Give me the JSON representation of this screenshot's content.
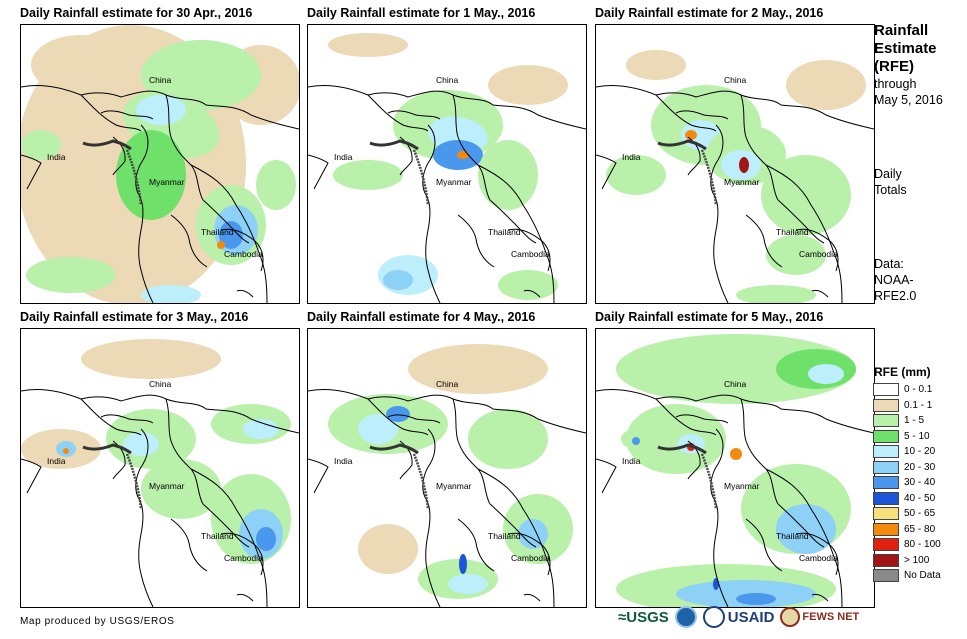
{
  "panels": [
    {
      "title": "Daily Rainfall estimate for 30 Apr., 2016"
    },
    {
      "title": "Daily Rainfall estimate for 1 May., 2016"
    },
    {
      "title": "Daily Rainfall estimate for 2 May., 2016"
    },
    {
      "title": "Daily Rainfall estimate for 3 May., 2016"
    },
    {
      "title": "Daily Rainfall estimate for 4 May., 2016"
    },
    {
      "title": "Daily Rainfall estimate for 5 May., 2016"
    }
  ],
  "map_labels": {
    "china": "China",
    "india": "India",
    "myanmar": "Myanmar",
    "thailand": "Thailand",
    "cambodia": "Cambodia"
  },
  "sidebar": {
    "title_lines": [
      "Rainfall",
      "Estimate",
      "(RFE)"
    ],
    "through": "through",
    "date": "May 5, 2016",
    "totals_lines": [
      "Daily",
      "Totals"
    ],
    "data_lines": [
      "Data:",
      "NOAA-",
      "RFE2.0"
    ]
  },
  "legend": {
    "title": "RFE (mm)",
    "items": [
      {
        "label": "0 - 0.1",
        "color": "#ffffff"
      },
      {
        "label": "0.1 - 1",
        "color": "#ecd9b6"
      },
      {
        "label": "1 - 5",
        "color": "#b9f0aa"
      },
      {
        "label": "5 - 10",
        "color": "#6fe06a"
      },
      {
        "label": "10 - 20",
        "color": "#bdeefb"
      },
      {
        "label": "20 - 30",
        "color": "#8ed1f6"
      },
      {
        "label": "30 - 40",
        "color": "#4a98ee"
      },
      {
        "label": "40 - 50",
        "color": "#1c55d9"
      },
      {
        "label": "50 - 65",
        "color": "#f8e17c"
      },
      {
        "label": "65 - 80",
        "color": "#f38a0e"
      },
      {
        "label": "80 - 100",
        "color": "#e2200f"
      },
      {
        "label": "> 100",
        "color": "#a31414"
      },
      {
        "label": "No Data",
        "color": "#8a8a8a"
      }
    ]
  },
  "credit": "Map produced by USGS/EROS",
  "logos": {
    "usgs": "≈USGS",
    "usaid": "USAID",
    "fews": "FEWS NET"
  }
}
